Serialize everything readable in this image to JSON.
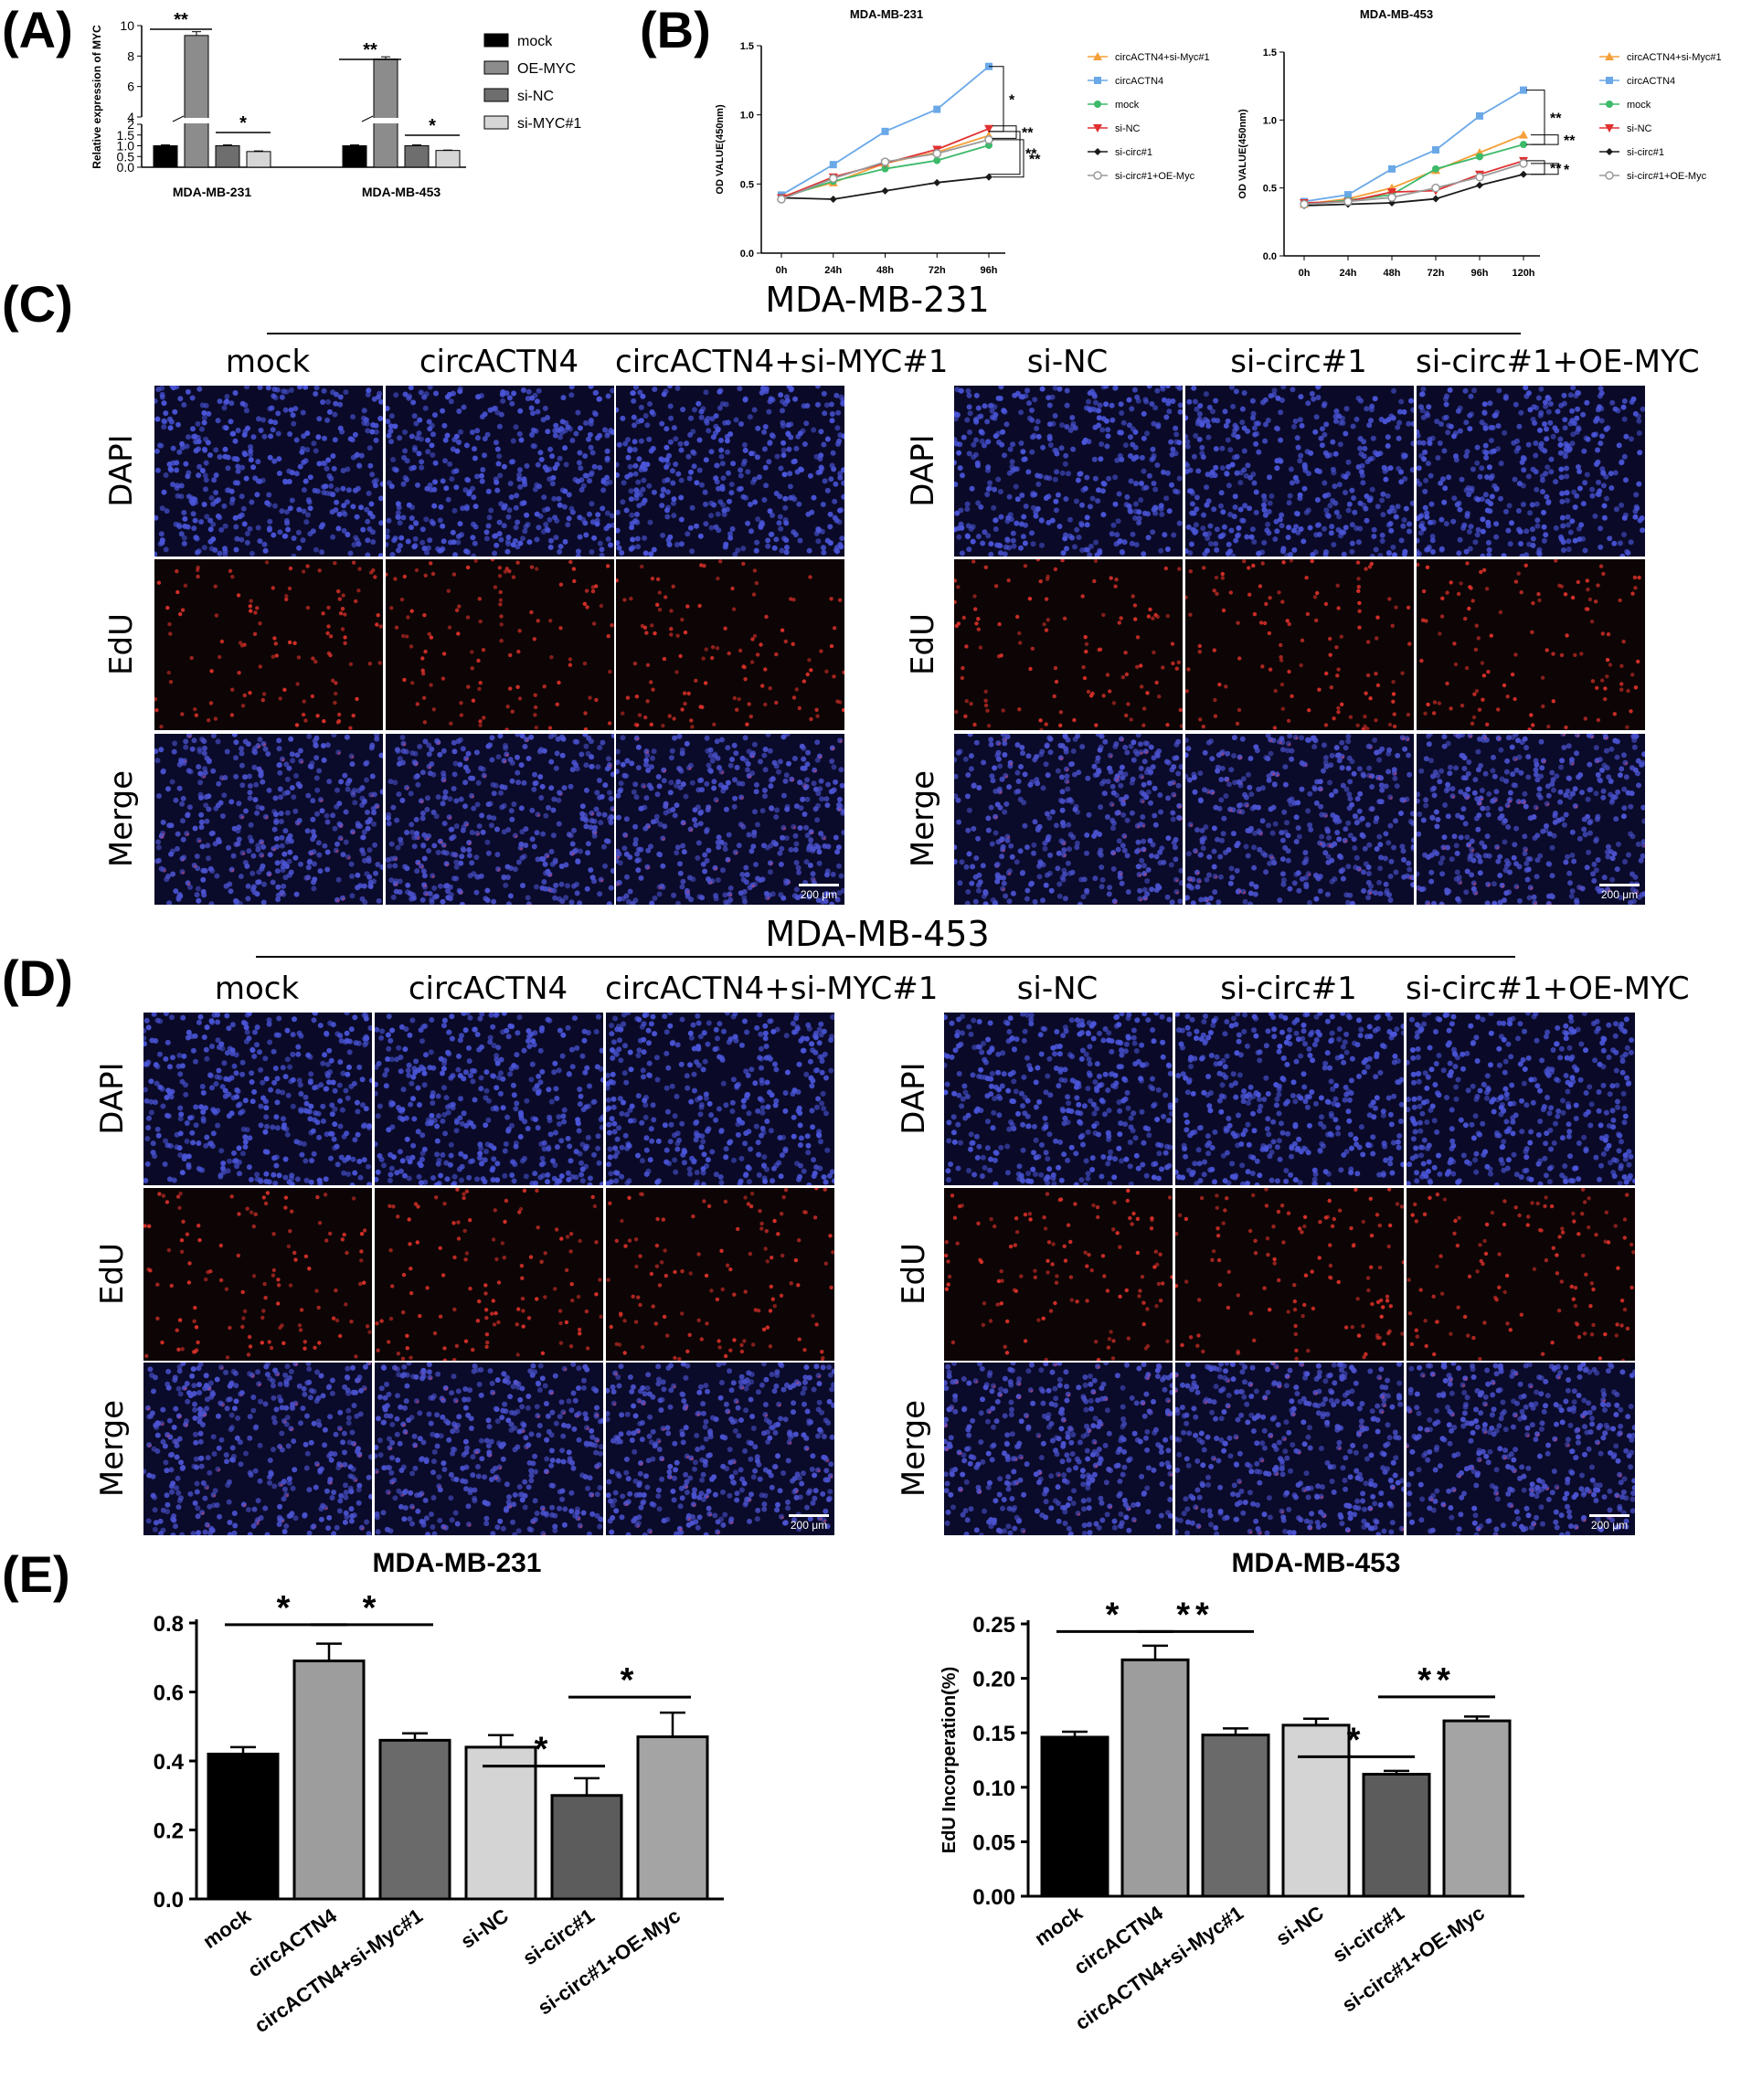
{
  "panels": {
    "a": "(A)",
    "b": "(B)",
    "c": "(C)",
    "d": "(D)",
    "e": "(E)"
  },
  "colors": {
    "dapi_bg": "#0a0a28",
    "dapi_dot": "#4a55d8",
    "edu_bg": "#0d0505",
    "edu_dot": "#d8302a",
    "merge_bg": "#0a0a2a",
    "merge_dot": "#4b53d0"
  },
  "micro": {
    "c_title": "MDA-MB-231",
    "d_title": "MDA-MB-453",
    "groups": [
      "mock",
      "circACTN4",
      "circACTN4+si-MYC#1",
      "si-NC",
      "si-circ#1",
      "si-circ#1+OE-MYC"
    ],
    "rows": [
      "DAPI",
      "EdU",
      "Merge"
    ],
    "scale": "200 μm"
  },
  "chart_data": [
    {
      "id": "A",
      "type": "bar",
      "ylabel": "Relative expression of MYC",
      "categories": [
        "MDA-MB-231",
        "MDA-MB-453"
      ],
      "ylim_lower": [
        0,
        2
      ],
      "ylim_upper": [
        4,
        10
      ],
      "yticks_lower": [
        "0.0",
        "0.5",
        "1.0",
        "1.5",
        "2"
      ],
      "yticks_upper": [
        "4",
        "6",
        "8",
        "10"
      ],
      "legend": [
        "mock",
        "OE-MYC",
        "si-NC",
        "si-MYC#1"
      ],
      "series": [
        {
          "name": "mock",
          "values": [
            1.0,
            1.0
          ],
          "err": [
            0.04,
            0.04
          ],
          "color": "#000000"
        },
        {
          "name": "OE-MYC",
          "values": [
            9.35,
            7.8
          ],
          "err": [
            0.25,
            0.15
          ],
          "color": "#8c8c8c"
        },
        {
          "name": "si-NC",
          "values": [
            1.0,
            1.0
          ],
          "err": [
            0.04,
            0.04
          ],
          "color": "#6e6e6e"
        },
        {
          "name": "si-MYC#1",
          "values": [
            0.73,
            0.78
          ],
          "err": [
            0.03,
            0.02
          ],
          "color": "#d6d6d6"
        }
      ],
      "sig": [
        "**",
        "*",
        "**",
        "*"
      ]
    },
    {
      "id": "B1",
      "type": "line",
      "title": "MDA-MB-231",
      "ylabel": "OD VALUE(450nm)",
      "x": [
        "0h",
        "24h",
        "48h",
        "72h",
        "96h"
      ],
      "ylim": [
        0,
        1.5
      ],
      "yticks": [
        "0.0",
        "0.5",
        "1.0",
        "1.5"
      ],
      "series": [
        {
          "name": "circACTN4+si-Myc#1",
          "values": [
            0.41,
            0.51,
            0.65,
            0.73,
            0.85
          ],
          "color": "#f5a03a",
          "marker": "triangle"
        },
        {
          "name": "circACTN4",
          "values": [
            0.42,
            0.64,
            0.88,
            1.04,
            1.35
          ],
          "color": "#6aa8e8",
          "marker": "square"
        },
        {
          "name": "mock",
          "values": [
            0.4,
            0.52,
            0.61,
            0.67,
            0.78
          ],
          "color": "#3cba6a",
          "marker": "circle"
        },
        {
          "name": "si-NC",
          "values": [
            0.4,
            0.55,
            0.65,
            0.75,
            0.9
          ],
          "color": "#e03030",
          "marker": "triangle-down"
        },
        {
          "name": "si-circ#1",
          "values": [
            0.4,
            0.39,
            0.45,
            0.51,
            0.55
          ],
          "color": "#1a1a1a",
          "marker": "diamond"
        },
        {
          "name": "si-circ#1+OE-Myc",
          "values": [
            0.39,
            0.54,
            0.66,
            0.72,
            0.82
          ],
          "color": "#9a9a9a",
          "marker": "circle-open"
        }
      ],
      "sig": [
        "*",
        "**",
        "**",
        "**"
      ]
    },
    {
      "id": "B2",
      "type": "line",
      "title": "MDA-MB-453",
      "ylabel": "OD VALUE(450nm)",
      "x": [
        "0h",
        "24h",
        "48h",
        "72h",
        "96h",
        "120h"
      ],
      "ylim": [
        0,
        1.5
      ],
      "yticks": [
        "0.0",
        "0.5",
        "1.0",
        "1.5"
      ],
      "series": [
        {
          "name": "circACTN4+si-Myc#1",
          "values": [
            0.38,
            0.42,
            0.5,
            0.63,
            0.76,
            0.89
          ],
          "color": "#f5a03a",
          "marker": "triangle"
        },
        {
          "name": "circACTN4",
          "values": [
            0.4,
            0.45,
            0.64,
            0.78,
            1.03,
            1.22
          ],
          "color": "#6aa8e8",
          "marker": "square"
        },
        {
          "name": "mock",
          "values": [
            0.38,
            0.41,
            0.45,
            0.64,
            0.73,
            0.82
          ],
          "color": "#3cba6a",
          "marker": "circle"
        },
        {
          "name": "si-NC",
          "values": [
            0.39,
            0.4,
            0.47,
            0.48,
            0.6,
            0.7
          ],
          "color": "#e03030",
          "marker": "triangle-down"
        },
        {
          "name": "si-circ#1",
          "values": [
            0.37,
            0.38,
            0.39,
            0.42,
            0.52,
            0.6
          ],
          "color": "#1a1a1a",
          "marker": "diamond"
        },
        {
          "name": "si-circ#1+OE-Myc",
          "values": [
            0.38,
            0.4,
            0.43,
            0.5,
            0.58,
            0.68
          ],
          "color": "#9a9a9a",
          "marker": "circle-open"
        }
      ],
      "sig": [
        "**",
        "**",
        "**",
        "*"
      ]
    },
    {
      "id": "E1",
      "type": "bar",
      "title": "MDA-MB-231",
      "ylabel": "EdU Incorperation(%)",
      "categories": [
        "mock",
        "circACTN4",
        "circACTN4+si-Myc#1",
        "si-NC",
        "si-circ#1",
        "si-circ#1+OE-Myc"
      ],
      "values": [
        0.42,
        0.69,
        0.46,
        0.44,
        0.3,
        0.47
      ],
      "err": [
        0.02,
        0.05,
        0.02,
        0.035,
        0.05,
        0.07
      ],
      "colors": [
        "#000000",
        "#9d9d9d",
        "#6a6a6a",
        "#d4d4d4",
        "#5c5c5c",
        "#a4a4a4"
      ],
      "ylim": [
        0,
        0.8
      ],
      "yticks": [
        "0.0",
        "0.2",
        "0.4",
        "0.6",
        "0.8"
      ],
      "sig": [
        "*",
        "*",
        "*",
        "*"
      ]
    },
    {
      "id": "E2",
      "type": "bar",
      "title": "MDA-MB-453",
      "ylabel": "EdU Incorperation(%)",
      "categories": [
        "mock",
        "circACTN4",
        "circACTN4+si-Myc#1",
        "si-NC",
        "si-circ#1",
        "si-circ#1+OE-Myc"
      ],
      "values": [
        0.146,
        0.217,
        0.148,
        0.157,
        0.112,
        0.161
      ],
      "err": [
        0.005,
        0.013,
        0.006,
        0.006,
        0.003,
        0.004
      ],
      "colors": [
        "#000000",
        "#9d9d9d",
        "#6a6a6a",
        "#d4d4d4",
        "#5c5c5c",
        "#a4a4a4"
      ],
      "ylim": [
        0,
        0.25
      ],
      "yticks": [
        "0.00",
        "0.05",
        "0.10",
        "0.15",
        "0.20",
        "0.25"
      ],
      "sig": [
        "*",
        "**",
        "*",
        "**"
      ]
    }
  ]
}
